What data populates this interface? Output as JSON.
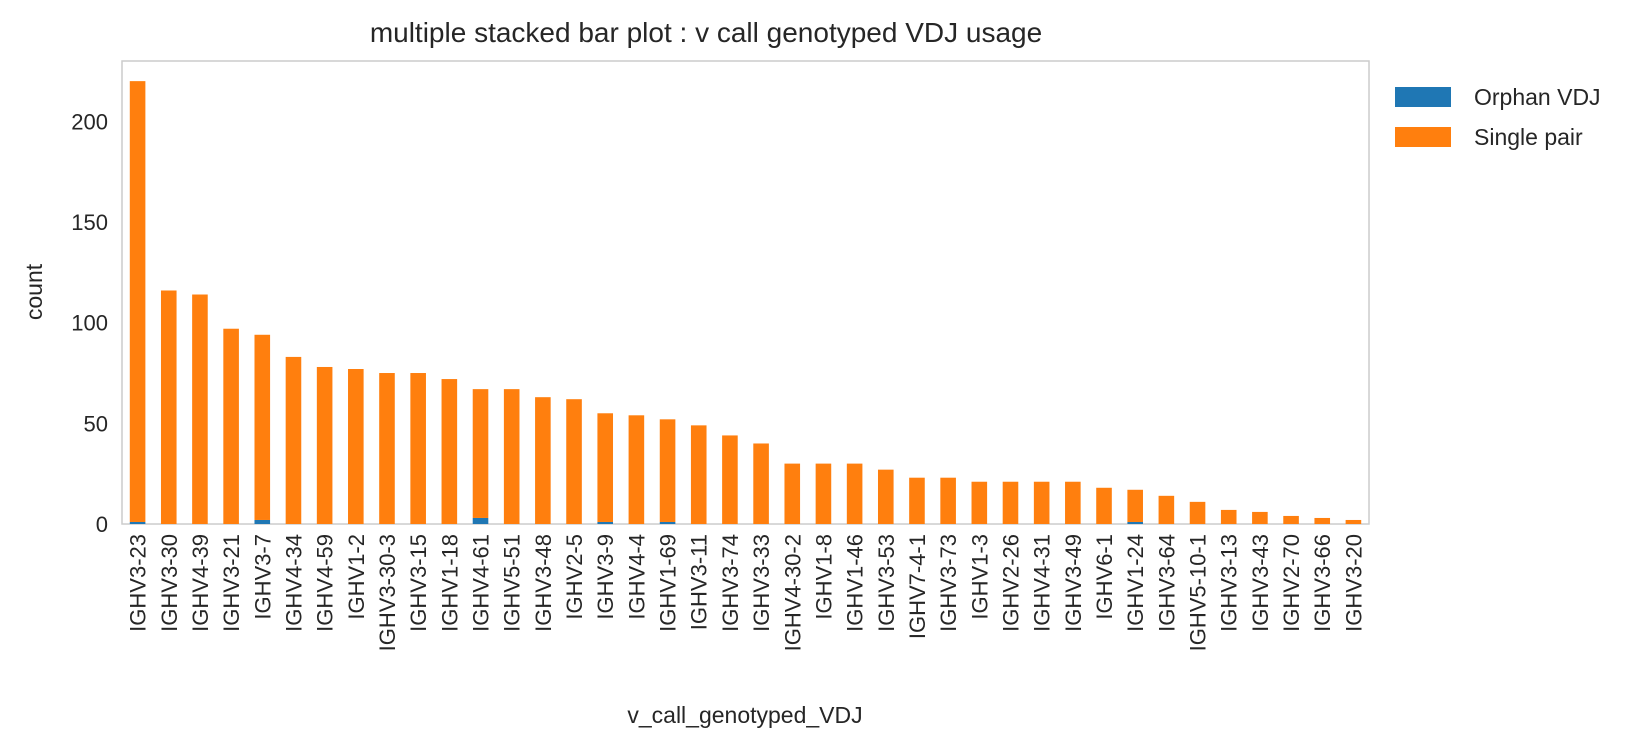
{
  "chart_data": {
    "type": "bar",
    "stacked": true,
    "title": "multiple stacked bar plot : v call genotyped VDJ usage",
    "xlabel": "v_call_genotyped_VDJ",
    "ylabel": "count",
    "ylim": [
      0,
      230
    ],
    "yticks": [
      0,
      50,
      100,
      150,
      200
    ],
    "grid": false,
    "legend_position": "outside-top-right",
    "categories": [
      "IGHV3-23",
      "IGHV3-30",
      "IGHV4-39",
      "IGHV3-21",
      "IGHV3-7",
      "IGHV4-34",
      "IGHV4-59",
      "IGHV1-2",
      "IGHV3-30-3",
      "IGHV3-15",
      "IGHV1-18",
      "IGHV4-61",
      "IGHV5-51",
      "IGHV3-48",
      "IGHV2-5",
      "IGHV3-9",
      "IGHV4-4",
      "IGHV1-69",
      "IGHV3-11",
      "IGHV3-74",
      "IGHV3-33",
      "IGHV4-30-2",
      "IGHV1-8",
      "IGHV1-46",
      "IGHV3-53",
      "IGHV7-4-1",
      "IGHV3-73",
      "IGHV1-3",
      "IGHV2-26",
      "IGHV4-31",
      "IGHV3-49",
      "IGHV6-1",
      "IGHV1-24",
      "IGHV3-64",
      "IGHV5-10-1",
      "IGHV3-13",
      "IGHV3-43",
      "IGHV2-70",
      "IGHV3-66",
      "IGHV3-20"
    ],
    "series": [
      {
        "name": "Orphan VDJ",
        "color": "#1f77b4",
        "values": [
          1,
          0,
          0,
          0,
          2,
          0,
          0,
          0,
          0,
          0,
          0,
          3,
          0,
          0,
          0,
          1,
          0,
          1,
          0,
          0,
          0,
          0,
          0,
          0,
          0,
          0,
          0,
          0,
          0,
          0,
          0,
          0,
          1,
          0,
          0,
          0,
          0,
          0,
          0,
          0
        ]
      },
      {
        "name": "Single pair",
        "color": "#ff7f0e",
        "values": [
          219,
          116,
          114,
          97,
          92,
          83,
          78,
          77,
          75,
          75,
          72,
          64,
          67,
          63,
          62,
          54,
          54,
          51,
          49,
          44,
          40,
          30,
          30,
          30,
          27,
          23,
          23,
          21,
          21,
          21,
          21,
          18,
          16,
          14,
          11,
          7,
          6,
          4,
          3,
          2
        ]
      }
    ]
  }
}
